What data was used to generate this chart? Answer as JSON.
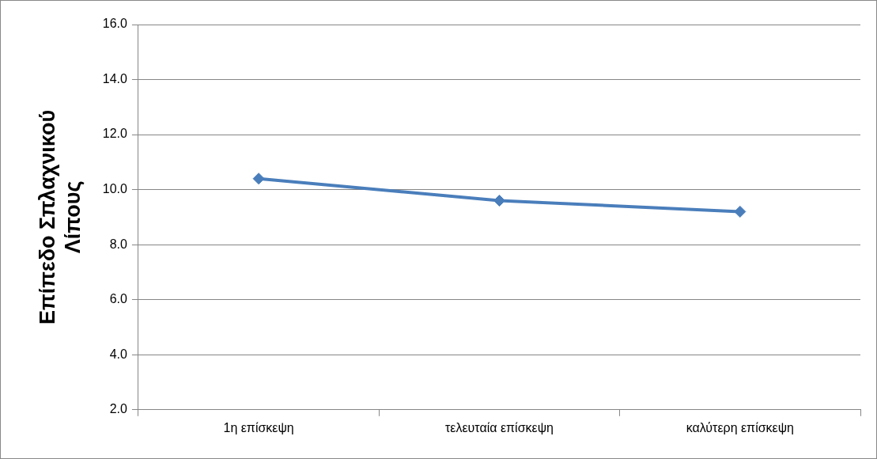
{
  "chart_data": {
    "type": "line",
    "ylabel": "Επίπεδο Σπλαχνικού Λίπους",
    "categories": [
      "1η επίσκεψη",
      "τελευταία επίσκεψη",
      "καλύτερη επίσκεψη"
    ],
    "series": [
      {
        "color": "#4a7ebb",
        "values": [
          10.4,
          9.6,
          9.2
        ]
      }
    ],
    "ylim": [
      2,
      16
    ],
    "yticks": [
      {
        "value": 2,
        "label": "2.0"
      },
      {
        "value": 4,
        "label": "4.0"
      },
      {
        "value": 6,
        "label": "6.0"
      },
      {
        "value": 8,
        "label": "8.0"
      },
      {
        "value": 10,
        "label": "10.0"
      },
      {
        "value": 12,
        "label": "12.0"
      },
      {
        "value": 14,
        "label": "14.0"
      },
      {
        "value": 16,
        "label": "16.0"
      }
    ],
    "grid": "y",
    "legend": false,
    "marker": "diamond",
    "line_style": "solid"
  }
}
